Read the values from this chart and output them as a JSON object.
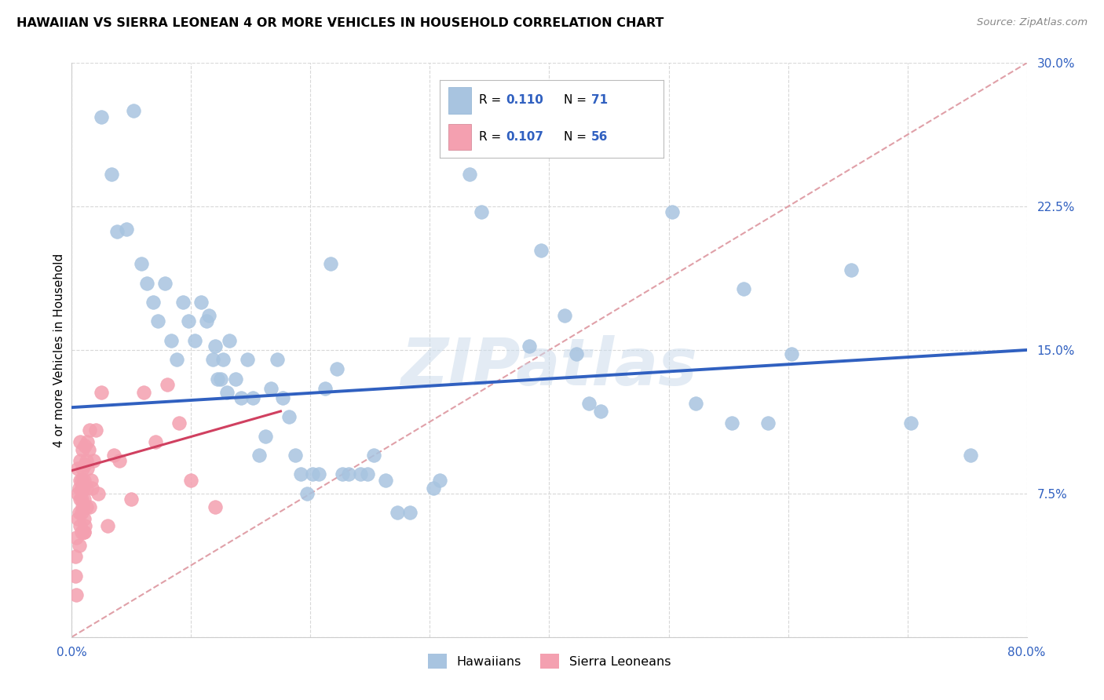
{
  "title": "HAWAIIAN VS SIERRA LEONEAN 4 OR MORE VEHICLES IN HOUSEHOLD CORRELATION CHART",
  "source": "Source: ZipAtlas.com",
  "ylabel": "4 or more Vehicles in Household",
  "xmin": 0.0,
  "xmax": 0.8,
  "ymin": 0.0,
  "ymax": 0.3,
  "yticks": [
    0.0,
    0.075,
    0.15,
    0.225,
    0.3
  ],
  "ytick_labels": [
    "",
    "7.5%",
    "15.0%",
    "22.5%",
    "30.0%"
  ],
  "xtick_positions": [
    0.0,
    0.1,
    0.2,
    0.3,
    0.4,
    0.5,
    0.6,
    0.7,
    0.8
  ],
  "xtick_labels": [
    "0.0%",
    "",
    "",
    "",
    "",
    "",
    "",
    "",
    "80.0%"
  ],
  "hawaiian_R": "0.110",
  "hawaiian_N": "71",
  "sierraleone_R": "0.107",
  "sierraleone_N": "56",
  "hawaiian_dot_color": "#a8c4e0",
  "sierraleone_dot_color": "#f4a0b0",
  "trend_hawaiian_color": "#3060c0",
  "trend_sierraleone_color": "#d04060",
  "diagonal_color": "#e0a0a8",
  "watermark": "ZIPatlas",
  "hawaiian_trend_x": [
    0.0,
    0.8
  ],
  "hawaiian_trend_y": [
    0.12,
    0.15
  ],
  "sierraleone_trend_x": [
    0.0,
    0.175
  ],
  "sierraleone_trend_y": [
    0.087,
    0.118
  ],
  "hawaiian_x": [
    0.025,
    0.033,
    0.038,
    0.046,
    0.052,
    0.058,
    0.063,
    0.068,
    0.072,
    0.078,
    0.083,
    0.088,
    0.093,
    0.098,
    0.103,
    0.108,
    0.113,
    0.118,
    0.122,
    0.127,
    0.132,
    0.137,
    0.142,
    0.147,
    0.152,
    0.157,
    0.162,
    0.167,
    0.172,
    0.177,
    0.182,
    0.187,
    0.192,
    0.197,
    0.202,
    0.207,
    0.212,
    0.217,
    0.222,
    0.227,
    0.232,
    0.242,
    0.248,
    0.253,
    0.263,
    0.273,
    0.283,
    0.303,
    0.308,
    0.323,
    0.333,
    0.343,
    0.383,
    0.393,
    0.413,
    0.423,
    0.433,
    0.443,
    0.503,
    0.523,
    0.553,
    0.563,
    0.583,
    0.603,
    0.653,
    0.703,
    0.753,
    0.115,
    0.12,
    0.125,
    0.13
  ],
  "hawaiian_y": [
    0.272,
    0.242,
    0.212,
    0.213,
    0.275,
    0.195,
    0.185,
    0.175,
    0.165,
    0.185,
    0.155,
    0.145,
    0.175,
    0.165,
    0.155,
    0.175,
    0.165,
    0.145,
    0.135,
    0.145,
    0.155,
    0.135,
    0.125,
    0.145,
    0.125,
    0.095,
    0.105,
    0.13,
    0.145,
    0.125,
    0.115,
    0.095,
    0.085,
    0.075,
    0.085,
    0.085,
    0.13,
    0.195,
    0.14,
    0.085,
    0.085,
    0.085,
    0.085,
    0.095,
    0.082,
    0.065,
    0.065,
    0.078,
    0.082,
    0.272,
    0.242,
    0.222,
    0.152,
    0.202,
    0.168,
    0.148,
    0.122,
    0.118,
    0.222,
    0.122,
    0.112,
    0.182,
    0.112,
    0.148,
    0.192,
    0.112,
    0.095,
    0.168,
    0.152,
    0.135,
    0.128
  ],
  "sierraleone_x": [
    0.003,
    0.003,
    0.004,
    0.004,
    0.005,
    0.005,
    0.005,
    0.006,
    0.006,
    0.006,
    0.007,
    0.007,
    0.007,
    0.007,
    0.007,
    0.008,
    0.008,
    0.008,
    0.008,
    0.008,
    0.009,
    0.009,
    0.009,
    0.009,
    0.01,
    0.01,
    0.01,
    0.01,
    0.01,
    0.011,
    0.011,
    0.011,
    0.012,
    0.012,
    0.012,
    0.013,
    0.013,
    0.014,
    0.015,
    0.015,
    0.016,
    0.017,
    0.018,
    0.02,
    0.022,
    0.025,
    0.03,
    0.035,
    0.04,
    0.05,
    0.06,
    0.07,
    0.08,
    0.09,
    0.1,
    0.12
  ],
  "sierraleone_y": [
    0.032,
    0.042,
    0.052,
    0.022,
    0.062,
    0.075,
    0.088,
    0.065,
    0.078,
    0.048,
    0.072,
    0.082,
    0.092,
    0.102,
    0.058,
    0.072,
    0.082,
    0.055,
    0.065,
    0.078,
    0.088,
    0.098,
    0.068,
    0.078,
    0.055,
    0.062,
    0.072,
    0.082,
    0.055,
    0.09,
    0.1,
    0.058,
    0.068,
    0.078,
    0.092,
    0.088,
    0.102,
    0.098,
    0.108,
    0.068,
    0.082,
    0.078,
    0.092,
    0.108,
    0.075,
    0.128,
    0.058,
    0.095,
    0.092,
    0.072,
    0.128,
    0.102,
    0.132,
    0.112,
    0.082,
    0.068
  ]
}
